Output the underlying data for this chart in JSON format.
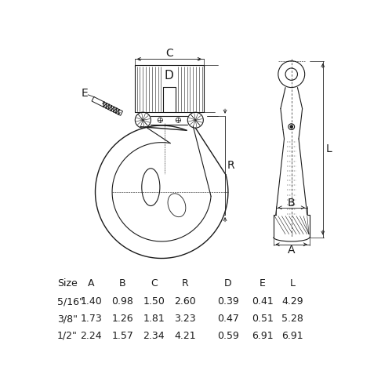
{
  "bg_color": "#ffffff",
  "line_color": "#1a1a1a",
  "text_color": "#1a1a1a",
  "table_headers": [
    "Size",
    "A",
    "B",
    "C",
    "R",
    "D",
    "E",
    "L"
  ],
  "table_rows": [
    [
      "5/16\"",
      "1.40",
      "0.98",
      "1.50",
      "2.60",
      "0.39",
      "0.41",
      "4.29"
    ],
    [
      "3/8\"",
      "1.73",
      "1.26",
      "1.81",
      "3.23",
      "0.47",
      "0.51",
      "5.28"
    ],
    [
      "1/2\"",
      "2.24",
      "1.57",
      "2.34",
      "4.21",
      "0.59",
      "6.91",
      "6.91"
    ]
  ],
  "font_size_table": 9.0,
  "col_positions": [
    12,
    68,
    120,
    172,
    224,
    295,
    352,
    402,
    455
  ]
}
